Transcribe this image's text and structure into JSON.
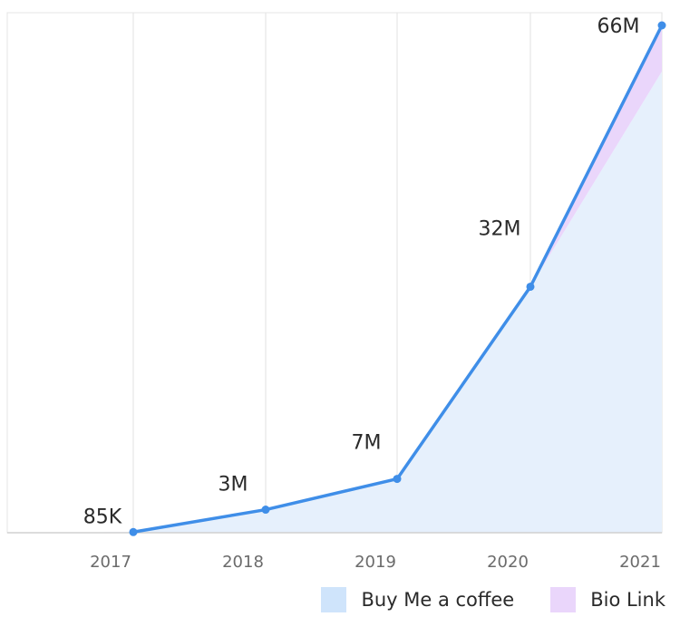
{
  "chart_data": {
    "type": "area",
    "x": [
      "2017",
      "2018",
      "2019",
      "2020",
      "2021"
    ],
    "series": [
      {
        "name": "Buy Me a coffee",
        "values": [
          0.085,
          3,
          7,
          32,
          60
        ],
        "color": "#e6f0fc"
      },
      {
        "name": "Bio Link",
        "values": [
          0,
          0,
          0,
          0,
          6
        ],
        "color": "#ead6fb"
      }
    ],
    "total": {
      "values": [
        0.085,
        3,
        7,
        32,
        66
      ],
      "labels": [
        "85K",
        "3M",
        "7M",
        "32M",
        "66M"
      ],
      "color": "#3f8ee8"
    },
    "ylim": [
      0,
      66
    ],
    "grid": "vertical",
    "legend_position": "bottom-right"
  }
}
